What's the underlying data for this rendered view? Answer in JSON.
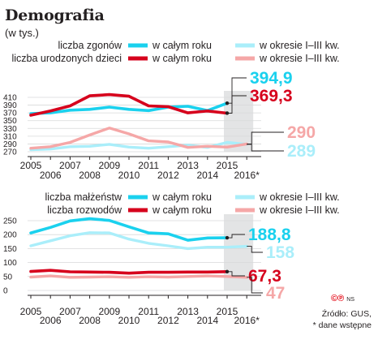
{
  "header": {
    "title": "Demografia",
    "subtitle": "(w tys.)"
  },
  "legend": {
    "col_full_year": "w całym roku",
    "col_q1_q3": "w okresie I–III kw."
  },
  "colors": {
    "cyan": "#1ad1ee",
    "cyan_light": "#aaeefa",
    "red": "#d6001c",
    "red_light": "#f5a7a7",
    "grey_band": "#e3e4e5",
    "grid": "#d8d9da",
    "end_grey": "#a2a4a6"
  },
  "footer": {
    "source": "Źródło: GUS,",
    "note": "* dane wstępne",
    "logo_ns": "NS"
  },
  "chart_data": [
    {
      "type": "line",
      "x": [
        "2005",
        "2006",
        "2007",
        "2008",
        "2009",
        "2010",
        "2011",
        "2012",
        "2013",
        "2014",
        "2015",
        "2016*"
      ],
      "y_ticks": [
        "410",
        "390",
        "370",
        "350",
        "330",
        "310",
        "290",
        "270"
      ],
      "ylim": [
        270,
        410
      ],
      "row_labels": [
        "liczba zgonów",
        "liczba urodzonych dzieci"
      ],
      "series": [
        {
          "name": "liczba zgonów – w całym roku",
          "color": "cyan",
          "end_label": "394,9",
          "values": [
            368,
            370,
            377,
            379,
            385,
            379,
            376,
            385,
            387,
            376,
            394.9,
            null
          ]
        },
        {
          "name": "liczba urodzonych dzieci – w całym roku",
          "color": "red",
          "end_label": "369,3",
          "values": [
            364,
            375,
            388,
            414,
            417,
            413,
            388,
            386,
            370,
            375,
            369.3,
            null
          ]
        },
        {
          "name": "liczba zgonów – w okresie I–III kw.",
          "color": "cyan_light",
          "end_label": "289",
          "values": [
            275,
            277,
            283,
            284,
            289,
            282,
            279,
            283,
            287,
            281,
            294,
            289
          ]
        },
        {
          "name": "liczba urodzonych dzieci – w okresie I–III kw.",
          "color": "red_light",
          "end_label": "290",
          "values": [
            279,
            283,
            294,
            313,
            331,
            316,
            298,
            295,
            281,
            284,
            282,
            290
          ]
        }
      ]
    },
    {
      "type": "line",
      "x": [
        "2005",
        "2006",
        "2007",
        "2008",
        "2009",
        "2010",
        "2011",
        "2012",
        "2013",
        "2014",
        "2015",
        "2016*"
      ],
      "y_ticks": [
        "250",
        "200",
        "150",
        "100",
        "50",
        "0"
      ],
      "ylim": [
        0,
        250
      ],
      "row_labels": [
        "liczba małżeństw",
        "liczba rozwodów"
      ],
      "series": [
        {
          "name": "liczba małżeństw – w całym roku",
          "color": "cyan",
          "end_label": "188,8",
          "values": [
            206,
            226,
            249,
            257,
            251,
            228,
            206,
            203,
            180,
            188,
            188.8,
            null
          ]
        },
        {
          "name": "liczba małżeństw – w okresie I–III kw.",
          "color": "cyan_light",
          "end_label": "158",
          "values": [
            160,
            178,
            196,
            207,
            206,
            184,
            169,
            160,
            150,
            155,
            155,
            158
          ]
        },
        {
          "name": "liczba rozwodów – w całym roku",
          "color": "red",
          "end_label": "67,3",
          "values": [
            68,
            72,
            67,
            66,
            65,
            62,
            65,
            65,
            66,
            66,
            67.3,
            null
          ]
        },
        {
          "name": "liczba rozwodów – w okresie I–III kw.",
          "color": "red_light",
          "end_label": "47",
          "values": [
            48,
            52,
            47,
            48,
            49,
            47,
            49,
            48,
            50,
            52,
            50,
            47
          ]
        }
      ]
    }
  ]
}
